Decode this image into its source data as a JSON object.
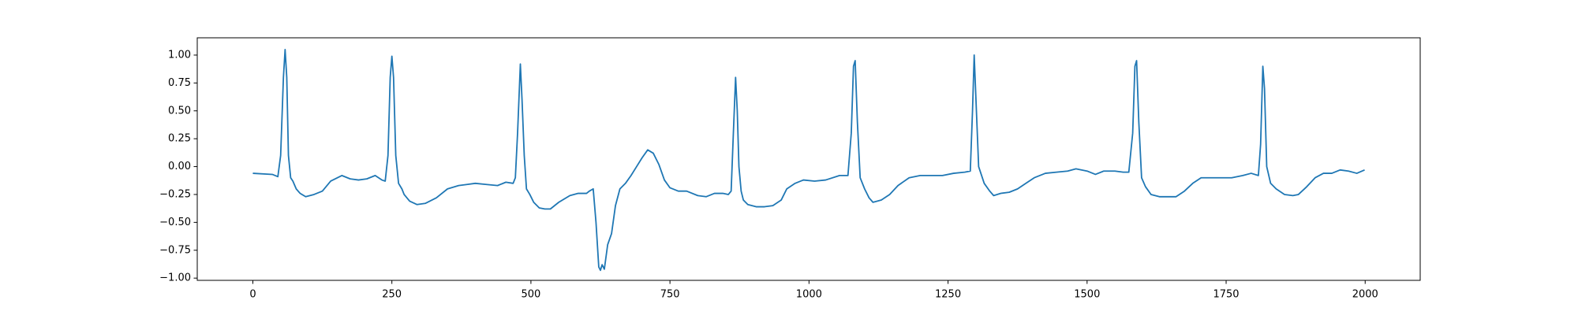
{
  "chart_data": {
    "type": "line",
    "x": [
      0,
      35,
      45,
      50,
      55,
      58,
      61,
      64,
      68,
      72,
      78,
      85,
      95,
      110,
      125,
      140,
      160,
      175,
      190,
      205,
      220,
      232,
      238,
      243,
      247,
      250,
      253,
      257,
      262,
      268,
      272,
      282,
      295,
      310,
      330,
      350,
      370,
      385,
      400,
      420,
      440,
      455,
      468,
      472,
      476,
      481,
      484,
      488,
      492,
      498,
      505,
      515,
      525,
      535,
      550,
      570,
      585,
      600,
      605,
      612,
      617,
      622,
      625,
      628,
      632,
      638,
      645,
      652,
      660,
      670,
      680,
      690,
      700,
      710,
      720,
      730,
      740,
      750,
      765,
      780,
      800,
      815,
      830,
      845,
      855,
      860,
      864,
      868,
      871,
      874,
      878,
      882,
      890,
      905,
      920,
      935,
      950,
      960,
      975,
      990,
      1010,
      1030,
      1055,
      1070,
      1076,
      1080,
      1083,
      1087,
      1092,
      1100,
      1108,
      1115,
      1130,
      1145,
      1160,
      1180,
      1200,
      1220,
      1240,
      1260,
      1280,
      1290,
      1294,
      1297,
      1301,
      1305,
      1315,
      1325,
      1332,
      1345,
      1360,
      1375,
      1390,
      1405,
      1425,
      1445,
      1465,
      1480,
      1500,
      1515,
      1530,
      1550,
      1565,
      1575,
      1582,
      1586,
      1589,
      1593,
      1598,
      1605,
      1615,
      1630,
      1645,
      1660,
      1675,
      1690,
      1705,
      1720,
      1740,
      1760,
      1780,
      1795,
      1808,
      1812,
      1816,
      1819,
      1823,
      1830,
      1840,
      1855,
      1870,
      1880,
      1895,
      1910,
      1925,
      1940,
      1955,
      1970,
      1985,
      1999
    ],
    "series": [
      {
        "color": "#1f77b4",
        "values": [
          -0.06,
          -0.07,
          -0.09,
          0.1,
          0.8,
          1.05,
          0.8,
          0.1,
          -0.1,
          -0.13,
          -0.2,
          -0.24,
          -0.27,
          -0.25,
          -0.22,
          -0.13,
          -0.08,
          -0.11,
          -0.12,
          -0.11,
          -0.08,
          -0.12,
          -0.13,
          0.1,
          0.8,
          0.99,
          0.8,
          0.1,
          -0.15,
          -0.2,
          -0.25,
          -0.31,
          -0.34,
          -0.33,
          -0.28,
          -0.2,
          -0.17,
          -0.16,
          -0.15,
          -0.16,
          -0.17,
          -0.14,
          -0.15,
          -0.1,
          0.3,
          0.92,
          0.6,
          0.1,
          -0.2,
          -0.25,
          -0.32,
          -0.37,
          -0.38,
          -0.38,
          -0.32,
          -0.26,
          -0.24,
          -0.24,
          -0.22,
          -0.2,
          -0.5,
          -0.9,
          -0.93,
          -0.88,
          -0.92,
          -0.7,
          -0.6,
          -0.35,
          -0.2,
          -0.15,
          -0.08,
          0.0,
          0.08,
          0.15,
          0.12,
          0.02,
          -0.12,
          -0.19,
          -0.22,
          -0.22,
          -0.26,
          -0.27,
          -0.24,
          -0.24,
          -0.25,
          -0.22,
          0.3,
          0.8,
          0.5,
          0.0,
          -0.22,
          -0.3,
          -0.34,
          -0.36,
          -0.36,
          -0.35,
          -0.3,
          -0.2,
          -0.15,
          -0.12,
          -0.13,
          -0.12,
          -0.08,
          -0.08,
          0.3,
          0.9,
          0.95,
          0.4,
          -0.1,
          -0.2,
          -0.28,
          -0.32,
          -0.3,
          -0.25,
          -0.17,
          -0.1,
          -0.08,
          -0.08,
          -0.08,
          -0.06,
          -0.05,
          -0.04,
          0.5,
          1.0,
          0.5,
          0.0,
          -0.15,
          -0.22,
          -0.26,
          -0.24,
          -0.23,
          -0.2,
          -0.15,
          -0.1,
          -0.06,
          -0.05,
          -0.04,
          -0.02,
          -0.04,
          -0.07,
          -0.04,
          -0.04,
          -0.05,
          -0.05,
          0.3,
          0.9,
          0.95,
          0.4,
          -0.1,
          -0.18,
          -0.25,
          -0.27,
          -0.27,
          -0.27,
          -0.22,
          -0.15,
          -0.1,
          -0.1,
          -0.1,
          -0.1,
          -0.08,
          -0.06,
          -0.08,
          0.2,
          0.9,
          0.7,
          0.0,
          -0.15,
          -0.2,
          -0.25,
          -0.26,
          -0.25,
          -0.18,
          -0.1,
          -0.06,
          -0.06,
          -0.03,
          -0.04,
          -0.06,
          -0.03
        ]
      }
    ],
    "xlim": [
      -99.95,
      2098.95
    ],
    "xticks": [
      0,
      250,
      500,
      750,
      1000,
      1250,
      1500,
      1750,
      2000
    ],
    "ylim": [
      -1.02,
      1.155
    ],
    "yticks": [
      {
        "value": -1,
        "label": "−1.00"
      },
      {
        "value": -0.75,
        "label": "−0.75"
      },
      {
        "value": -0.5,
        "label": "−0.50"
      },
      {
        "value": -0.25,
        "label": "−0.25"
      },
      {
        "value": 0,
        "label": "0.00"
      },
      {
        "value": 0.25,
        "label": "0.25"
      },
      {
        "value": 0.5,
        "label": "0.50"
      },
      {
        "value": 0.75,
        "label": "0.75"
      },
      {
        "value": 1,
        "label": "1.00"
      }
    ]
  }
}
